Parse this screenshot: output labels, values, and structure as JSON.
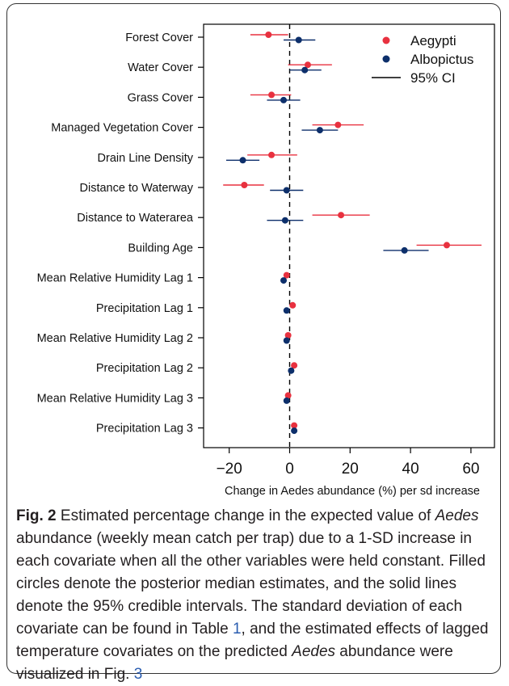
{
  "chart_data": {
    "type": "scatter",
    "orientation": "horizontal-forest-plot",
    "xlabel": "Change in Aedes abundance (%) per sd increase",
    "xlim": [
      -25,
      65
    ],
    "xticks": [
      -20,
      0,
      20,
      40,
      60
    ],
    "xtick_labels": [
      "−20",
      "0",
      "20",
      "40",
      "60"
    ],
    "reference_line": 0,
    "categories": [
      "Forest Cover",
      "Water Cover",
      "Grass Cover",
      "Managed Vegetation Cover",
      "Drain Line Density",
      "Distance to Waterway",
      "Distance to Waterarea",
      "Building Age",
      "Mean Relative Humidity Lag 1",
      "Precipitation Lag 1",
      "Mean Relative Humidity Lag 2",
      "Precipitation Lag 2",
      "Mean Relative Humidity Lag 3",
      "Precipitation Lag 3"
    ],
    "series": [
      {
        "name": "Aegypti",
        "color": "#e8313f",
        "median": [
          -7,
          6,
          -6,
          16,
          -6,
          -15,
          17,
          52,
          -1,
          1,
          -0.5,
          1.5,
          -0.5,
          1.5
        ],
        "lower": [
          -13,
          -0.5,
          -13,
          7.5,
          -14,
          -22,
          7.5,
          42,
          -1.5,
          0.5,
          -1,
          1,
          -1,
          1
        ],
        "upper": [
          -0.5,
          14,
          0.5,
          24.5,
          2.5,
          -8.5,
          26.5,
          63.5,
          -0.5,
          1.5,
          0,
          2,
          0,
          2
        ]
      },
      {
        "name": "Albopictus",
        "color": "#0d2f6b",
        "median": [
          3,
          5,
          -2,
          10,
          -15.5,
          -1,
          -1.5,
          38,
          -2,
          -1,
          -1,
          0.5,
          -1,
          1.5
        ],
        "lower": [
          -2,
          0,
          -7.5,
          4,
          -21,
          -6.5,
          -7.5,
          31,
          -2.5,
          -1.5,
          -1.5,
          0,
          -1.5,
          1
        ],
        "upper": [
          8.5,
          10.5,
          3.5,
          16,
          -10,
          4.5,
          4.5,
          46,
          -1.5,
          -0.5,
          -0.5,
          1,
          -0.5,
          2
        ]
      }
    ],
    "legend": {
      "placement": "top-right",
      "entries": [
        "Aegypti",
        "Albopictus",
        "95% CI"
      ]
    },
    "grid": false
  },
  "caption": {
    "lead": "Fig. 2",
    "t1": "  Estimated percentage change in the expected value of ",
    "i1": "Aedes",
    "t2": " abundance (weekly mean catch per trap) due to a 1-SD increase in each covariate when all the other variables were held constant. Filled circles denote the posterior median estimates, and the solid lines denote the 95% credible intervals. The standard deviation of each covariate can be found in Table ",
    "ref1": "1",
    "t3": ", and the estimated effects of lagged temperature covariates on the predicted ",
    "i2": "Aedes",
    "t4": " abundance were visualized in Fig. ",
    "ref2": "3"
  }
}
